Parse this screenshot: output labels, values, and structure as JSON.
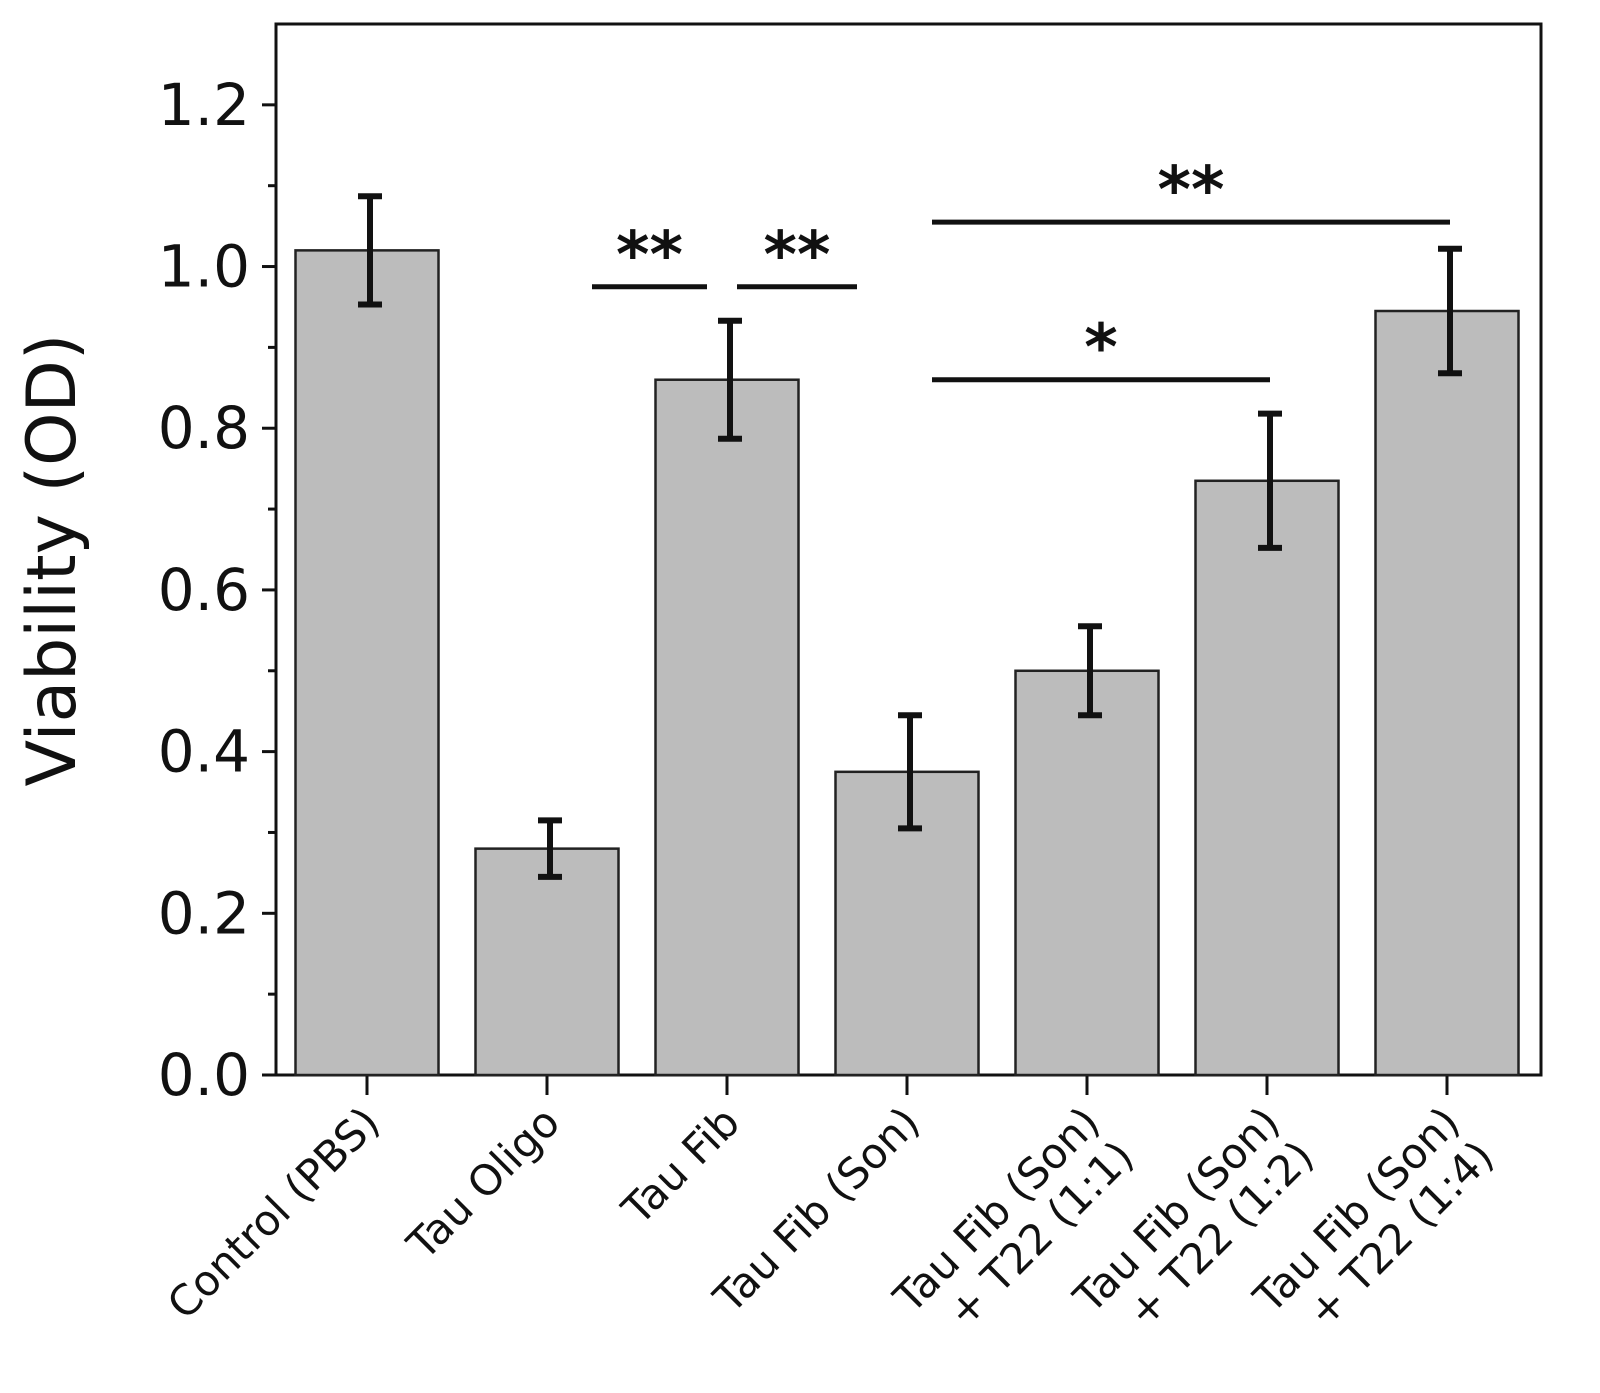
{
  "chart_data": {
    "type": "bar",
    "title": "",
    "xlabel": "",
    "ylabel": "Viability (OD)",
    "ylim": [
      0,
      1.3
    ],
    "yticks": [
      "0.0",
      "0.2",
      "0.4",
      "0.6",
      "0.8",
      "1.0",
      "1.2"
    ],
    "categories": [
      [
        "Control (PBS)"
      ],
      [
        "Tau Oligo"
      ],
      [
        "Tau Fib"
      ],
      [
        "Tau Fib (Son)"
      ],
      [
        "Tau Fib (Son)",
        "+ T22 (1:1)"
      ],
      [
        "Tau Fib (Son)",
        "+ T22 (1:2)"
      ],
      [
        "Tau Fib (Son)",
        "+ T22 (1:4)"
      ]
    ],
    "values": [
      1.02,
      0.28,
      0.86,
      0.375,
      0.5,
      0.735,
      0.945
    ],
    "errors": [
      0.067,
      0.035,
      0.073,
      0.07,
      0.055,
      0.083,
      0.077
    ],
    "grid": false,
    "legend": "none",
    "significance": [
      {
        "from": 1,
        "to": 2,
        "label": "**",
        "level": 0.975
      },
      {
        "from": 2,
        "to": 3,
        "label": "**",
        "level": 0.975
      },
      {
        "from": 3,
        "to": 6,
        "label": "**",
        "level": 1.055
      },
      {
        "from": 3,
        "to": 5,
        "label": "*",
        "level": 0.86
      }
    ],
    "colors": {
      "bar_fill": "#bcbcbc",
      "bar_stroke": "#222222",
      "axis": "#111111"
    }
  }
}
